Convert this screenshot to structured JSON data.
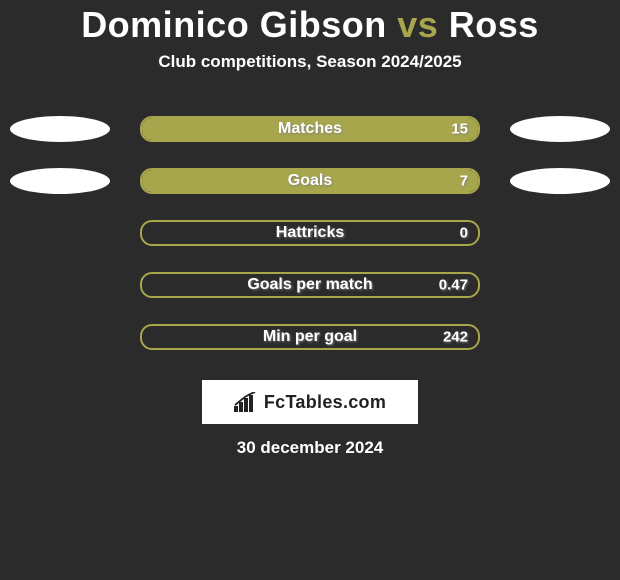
{
  "title": {
    "player1": "Dominico Gibson",
    "vs": "vs",
    "player2": "Ross"
  },
  "subtitle": "Club competitions, Season 2024/2025",
  "colors": {
    "background": "#2b2b2b",
    "accent": "#a7a64d",
    "text": "#ffffff",
    "ellipse": "#ffffff",
    "logo_bg": "#ffffff",
    "logo_fg": "#222222"
  },
  "rows": [
    {
      "label": "Matches",
      "value": "15",
      "fill_pct": 100,
      "show_ellipses": true
    },
    {
      "label": "Goals",
      "value": "7",
      "fill_pct": 100,
      "show_ellipses": true
    },
    {
      "label": "Hattricks",
      "value": "0",
      "fill_pct": 0,
      "show_ellipses": false
    },
    {
      "label": "Goals per match",
      "value": "0.47",
      "fill_pct": 0,
      "show_ellipses": false
    },
    {
      "label": "Min per goal",
      "value": "242",
      "fill_pct": 0,
      "show_ellipses": false
    }
  ],
  "bar_style": {
    "border_color": "#a7a64d",
    "fill_color": "#a7a64d",
    "border_radius": 12,
    "height": 26,
    "label_fontsize": 16,
    "value_fontsize": 15
  },
  "logo": {
    "brand_strong": "Fc",
    "brand_rest": "Tables.com"
  },
  "date": "30 december 2024"
}
